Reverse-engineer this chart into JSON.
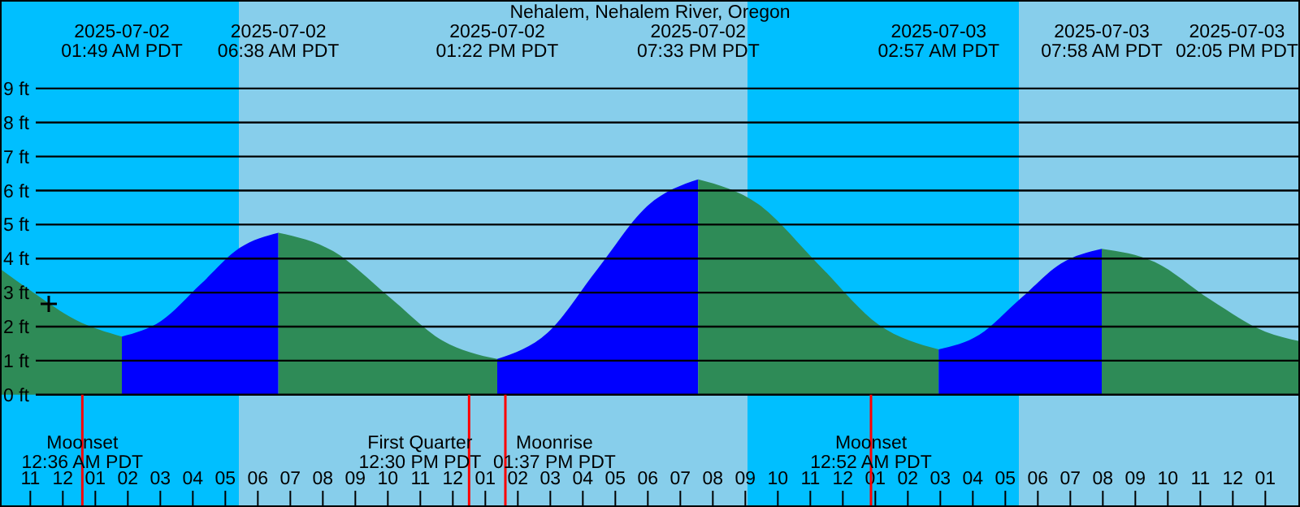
{
  "chart_data": {
    "type": "area",
    "title": "Nehalem, Nehalem River, Oregon",
    "xlim": [
      "2025-07-01T22:04",
      "2025-07-03T14:04"
    ],
    "ylim": [
      -3.3,
      11.6
    ],
    "xticks": [
      {
        "value": "2025-07-01T23:00",
        "label": "11"
      },
      {
        "value": "2025-07-02T00:00",
        "label": "12"
      },
      {
        "value": "2025-07-02T01:00",
        "label": "01"
      },
      {
        "value": "2025-07-02T02:00",
        "label": "02"
      },
      {
        "value": "2025-07-02T03:00",
        "label": "03"
      },
      {
        "value": "2025-07-02T04:00",
        "label": "04"
      },
      {
        "value": "2025-07-02T05:00",
        "label": "05"
      },
      {
        "value": "2025-07-02T06:00",
        "label": "06"
      },
      {
        "value": "2025-07-02T07:00",
        "label": "07"
      },
      {
        "value": "2025-07-02T08:00",
        "label": "08"
      },
      {
        "value": "2025-07-02T09:00",
        "label": "09"
      },
      {
        "value": "2025-07-02T10:00",
        "label": "10"
      },
      {
        "value": "2025-07-02T11:00",
        "label": "11"
      },
      {
        "value": "2025-07-02T12:00",
        "label": "12"
      },
      {
        "value": "2025-07-02T13:00",
        "label": "01"
      },
      {
        "value": "2025-07-02T14:00",
        "label": "02"
      },
      {
        "value": "2025-07-02T15:00",
        "label": "03"
      },
      {
        "value": "2025-07-02T16:00",
        "label": "04"
      },
      {
        "value": "2025-07-02T17:00",
        "label": "05"
      },
      {
        "value": "2025-07-02T18:00",
        "label": "06"
      },
      {
        "value": "2025-07-02T19:00",
        "label": "07"
      },
      {
        "value": "2025-07-02T20:00",
        "label": "08"
      },
      {
        "value": "2025-07-02T21:00",
        "label": "09"
      },
      {
        "value": "2025-07-02T22:00",
        "label": "10"
      },
      {
        "value": "2025-07-02T23:00",
        "label": "11"
      },
      {
        "value": "2025-07-03T00:00",
        "label": "12"
      },
      {
        "value": "2025-07-03T01:00",
        "label": "01"
      },
      {
        "value": "2025-07-03T02:00",
        "label": "02"
      },
      {
        "value": "2025-07-03T03:00",
        "label": "03"
      },
      {
        "value": "2025-07-03T04:00",
        "label": "04"
      },
      {
        "value": "2025-07-03T05:00",
        "label": "05"
      },
      {
        "value": "2025-07-03T06:00",
        "label": "06"
      },
      {
        "value": "2025-07-03T07:00",
        "label": "07"
      },
      {
        "value": "2025-07-03T08:00",
        "label": "08"
      },
      {
        "value": "2025-07-03T09:00",
        "label": "09"
      },
      {
        "value": "2025-07-03T10:00",
        "label": "10"
      },
      {
        "value": "2025-07-03T11:00",
        "label": "11"
      },
      {
        "value": "2025-07-03T12:00",
        "label": "12"
      },
      {
        "value": "2025-07-03T13:00",
        "label": "01"
      }
    ],
    "yticks": [
      {
        "value": 0,
        "label": "0 ft"
      },
      {
        "value": 1,
        "label": "1 ft"
      },
      {
        "value": 2,
        "label": "2 ft"
      },
      {
        "value": 3,
        "label": "3 ft"
      },
      {
        "value": 4,
        "label": "4 ft"
      },
      {
        "value": 5,
        "label": "5 ft"
      },
      {
        "value": 6,
        "label": "6 ft"
      },
      {
        "value": 7,
        "label": "7 ft"
      },
      {
        "value": 8,
        "label": "8 ft"
      },
      {
        "value": 9,
        "label": "9 ft"
      }
    ],
    "grid": "y",
    "bands": [
      {
        "axis": "x",
        "from": "2025-07-01T22:04",
        "to": "2025-07-02T05:25",
        "color": "#00bfff"
      },
      {
        "axis": "x",
        "from": "2025-07-02T05:25",
        "to": "2025-07-02T21:04",
        "color": "#87ceeb"
      },
      {
        "axis": "x",
        "from": "2025-07-02T21:04",
        "to": "2025-07-03T05:25",
        "color": "#00bfff"
      },
      {
        "axis": "x",
        "from": "2025-07-03T05:25",
        "to": "2025-07-03T14:04",
        "color": "#87ceeb"
      }
    ],
    "ref_lines": [
      {
        "axis": "x",
        "value": "2025-07-02T00:36",
        "label": "Moonset\n12:36 AM PDT",
        "color": "#ff0000"
      },
      {
        "axis": "x",
        "value": "2025-07-02T12:30",
        "label": "First Quarter\n12:30 PM PDT",
        "color": "#ff0000"
      },
      {
        "axis": "x",
        "value": "2025-07-02T13:37",
        "label": "Moonrise\n01:37 PM PDT",
        "color": "#ff0000"
      },
      {
        "axis": "x",
        "value": "2025-07-03T00:52",
        "label": "Moonset\n12:52 AM PDT",
        "color": "#ff0000"
      }
    ],
    "series": [
      {
        "color": "#2e8b57",
        "x": [
          "2025-07-01T22:04",
          "2025-07-01T23:06",
          "2025-07-02T00:24",
          "2025-07-02T01:49"
        ],
        "values": [
          3.7,
          3.0,
          2.2,
          1.71
        ]
      },
      {
        "color": "#0000ff",
        "x": [
          "2025-07-02T01:49",
          "2025-07-02T03:01",
          "2025-07-02T04:14",
          "2025-07-02T05:26",
          "2025-07-02T06:38"
        ],
        "values": [
          1.71,
          2.16,
          3.24,
          4.31,
          4.76
        ]
      },
      {
        "color": "#2e8b57",
        "x": [
          "2025-07-02T06:38",
          "2025-07-02T08:19",
          "2025-07-02T10:00",
          "2025-07-02T11:41",
          "2025-07-02T13:22"
        ],
        "values": [
          4.76,
          4.22,
          2.91,
          1.59,
          1.05
        ]
      },
      {
        "color": "#0000ff",
        "x": [
          "2025-07-02T13:22",
          "2025-07-02T14:55",
          "2025-07-02T16:27",
          "2025-07-02T18:00",
          "2025-07-02T19:33"
        ],
        "values": [
          1.05,
          1.82,
          3.69,
          5.56,
          6.33
        ]
      },
      {
        "color": "#2e8b57",
        "x": [
          "2025-07-02T19:33",
          "2025-07-02T21:24",
          "2025-07-02T23:15",
          "2025-07-03T01:06",
          "2025-07-03T02:57"
        ],
        "values": [
          6.33,
          5.6,
          3.83,
          2.06,
          1.33
        ]
      },
      {
        "color": "#0000ff",
        "x": [
          "2025-07-03T02:57",
          "2025-07-03T04:12",
          "2025-07-03T05:27",
          "2025-07-03T06:43",
          "2025-07-03T07:58"
        ],
        "values": [
          1.33,
          1.76,
          2.81,
          3.86,
          4.29
        ]
      },
      {
        "color": "#2e8b57",
        "x": [
          "2025-07-03T07:58",
          "2025-07-03T09:36",
          "2025-07-03T11:18",
          "2025-07-03T13:00",
          "2025-07-03T14:04"
        ],
        "values": [
          4.29,
          3.9,
          2.8,
          1.85,
          1.57
        ]
      },
      {
        "type": "scatter",
        "color": "#000000",
        "marker": "cross",
        "x": [
          "2025-07-01T23:34"
        ],
        "values": [
          2.67
        ]
      }
    ],
    "annotations": [
      "2025-07-02\n01:49 AM PDT",
      "2025-07-02\n06:38 AM PDT",
      "2025-07-02\n01:22 PM PDT",
      "2025-07-02\n07:33 PM PDT",
      "2025-07-03\n02:57 AM PDT",
      "2025-07-03\n07:58 AM PDT",
      "2025-07-03\n02:05 PM PDT"
    ]
  }
}
